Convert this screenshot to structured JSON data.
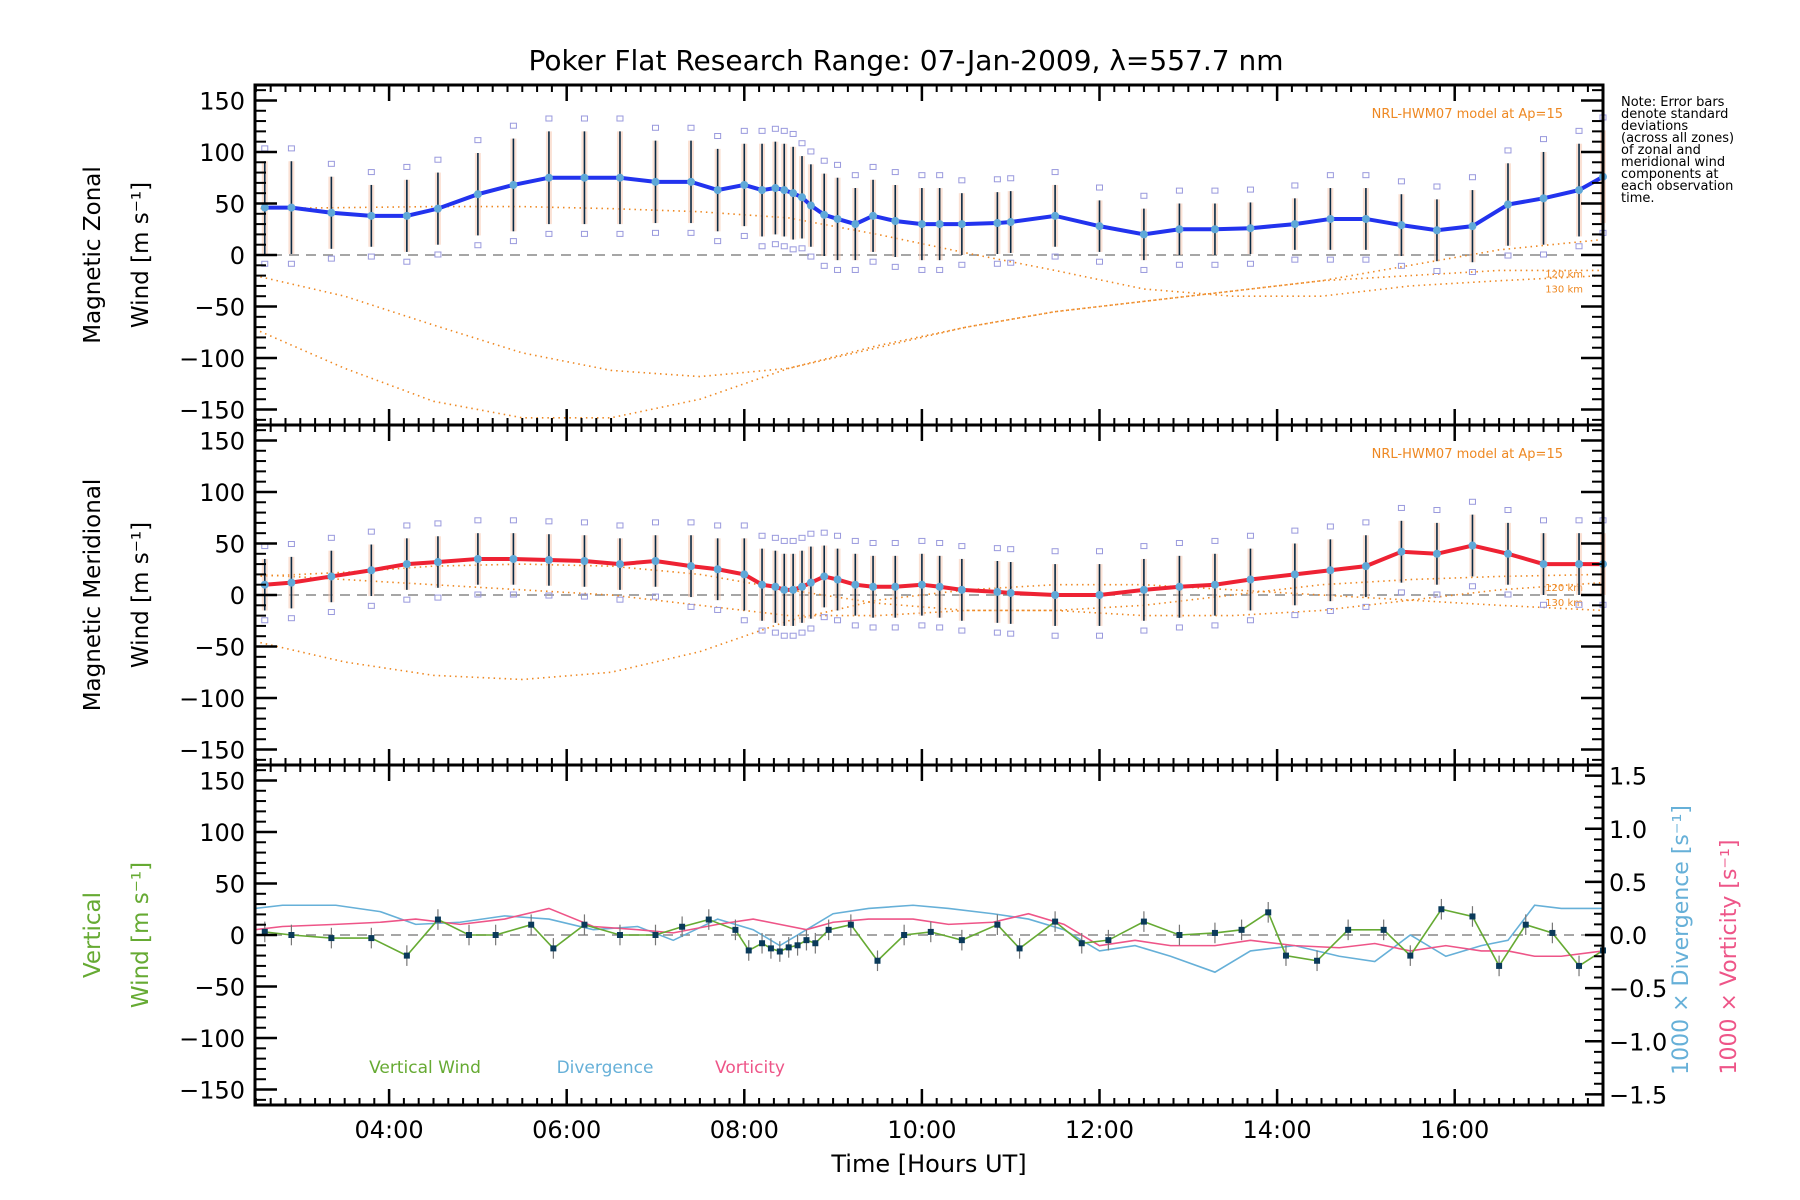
{
  "chart_data": {
    "type": "line",
    "title": "Poker Flat Research Range: 07-Jan-2009, λ=557.7 nm",
    "xlabel": "Time [Hours UT]",
    "xlim": [
      2.49,
      17.67
    ],
    "x_ticks": [
      4,
      6,
      8,
      10,
      12,
      14,
      16
    ],
    "x_tick_labels": [
      "04:00",
      "06:00",
      "08:00",
      "10:00",
      "12:00",
      "14:00",
      "16:00"
    ],
    "note_lines": [
      "Note: Error bars",
      "denote standard",
      "deviations",
      "(across all zones)",
      "of zonal and",
      "meridional wind",
      "components at",
      "each observation",
      "time."
    ],
    "colors": {
      "zonal": "#2233ee",
      "meridional": "#ee2233",
      "marker": "#5fa8d8",
      "model": "#ee8822",
      "errorbar": "#0a2a44",
      "scatter": "#9999dd",
      "vertical": "#66aa33",
      "divergence": "#66b0d8",
      "vorticity": "#ee5588",
      "zero_line": "#888888"
    },
    "panels": [
      {
        "name": "zonal",
        "ylabel_lines": [
          "Magnetic Zonal",
          "Wind [m s⁻¹]"
        ],
        "ylim": [
          -165,
          165
        ],
        "y_ticks": [
          -150,
          -100,
          -50,
          0,
          50,
          100,
          150
        ],
        "model_label": "NRL-HWM07 model at Ap=15",
        "model_alt_labels": [
          "120 km",
          "130 km"
        ],
        "series": {
          "name": "Magnetic Zonal Wind",
          "x": [
            2.6,
            2.9,
            3.35,
            3.8,
            4.2,
            4.55,
            5.0,
            5.4,
            5.8,
            6.2,
            6.6,
            7.0,
            7.4,
            7.7,
            8.0,
            8.2,
            8.35,
            8.45,
            8.55,
            8.65,
            8.75,
            8.9,
            9.05,
            9.25,
            9.45,
            9.7,
            10.0,
            10.2,
            10.45,
            10.85,
            11.0,
            11.5,
            12.0,
            12.5,
            12.9,
            13.3,
            13.7,
            14.2,
            14.6,
            15.0,
            15.4,
            15.8,
            16.2,
            16.6,
            17.0,
            17.4,
            17.67
          ],
          "y": [
            46,
            46,
            41,
            38,
            38,
            45,
            59,
            68,
            75,
            75,
            75,
            71,
            71,
            63,
            68,
            63,
            65,
            63,
            60,
            56,
            48,
            39,
            35,
            30,
            38,
            33,
            30,
            30,
            30,
            31,
            32,
            38,
            28,
            20,
            25,
            25,
            26,
            30,
            35,
            35,
            29,
            24,
            28,
            49,
            55,
            63,
            76
          ],
          "err": [
            45,
            45,
            35,
            30,
            35,
            35,
            40,
            45,
            45,
            45,
            45,
            40,
            40,
            40,
            40,
            45,
            45,
            45,
            45,
            40,
            40,
            40,
            40,
            35,
            35,
            35,
            35,
            35,
            30,
            30,
            30,
            30,
            25,
            25,
            25,
            25,
            25,
            25,
            30,
            30,
            30,
            30,
            35,
            40,
            45,
            45,
            45
          ]
        },
        "model_curves": [
          {
            "label": "model-upper",
            "x": [
              2.49,
              3.5,
              4.5,
              5.5,
              6.5,
              7.5,
              8.5,
              9.5,
              10.5,
              11.5,
              12.5,
              13.5,
              14.5,
              15.5,
              16.5,
              17.67
            ],
            "y": [
              45,
              46,
              47,
              47,
              45,
              42,
              36,
              20,
              2,
              -15,
              -33,
              -40,
              -40,
              -30,
              -25,
              -20
            ]
          },
          {
            "label": "model-120km",
            "x": [
              2.49,
              3.5,
              4.5,
              5.5,
              6.5,
              7.5,
              8.5,
              9.5,
              10.5,
              11.5,
              12.5,
              13.5,
              14.5,
              15.5,
              16.5,
              17.67
            ],
            "y": [
              -20,
              -40,
              -68,
              -95,
              -112,
              -118,
              -110,
              -90,
              -70,
              -55,
              -45,
              -35,
              -25,
              -20,
              -15,
              -15
            ]
          },
          {
            "label": "model-130km",
            "x": [
              2.49,
              3.5,
              4.5,
              5.5,
              6.5,
              7.5,
              8.5,
              9.5,
              10.5,
              11.5,
              12.5,
              13.5,
              14.5,
              15.5,
              16.5,
              17.67
            ],
            "y": [
              -72,
              -110,
              -142,
              -158,
              -158,
              -140,
              -110,
              -88,
              -70,
              -55,
              -45,
              -35,
              -25,
              -10,
              5,
              15
            ]
          }
        ]
      },
      {
        "name": "meridional",
        "ylabel_lines": [
          "Magnetic Meridional",
          "Wind [m s⁻¹]"
        ],
        "ylim": [
          -165,
          165
        ],
        "y_ticks": [
          -150,
          -100,
          -50,
          0,
          50,
          100,
          150
        ],
        "model_label": "NRL-HWM07 model at Ap=15",
        "model_alt_labels": [
          "120 km",
          "130 km"
        ],
        "series": {
          "name": "Magnetic Meridional Wind",
          "x": [
            2.6,
            2.9,
            3.35,
            3.8,
            4.2,
            4.55,
            5.0,
            5.4,
            5.8,
            6.2,
            6.6,
            7.0,
            7.4,
            7.7,
            8.0,
            8.2,
            8.35,
            8.45,
            8.55,
            8.65,
            8.75,
            8.9,
            9.05,
            9.25,
            9.45,
            9.7,
            10.0,
            10.2,
            10.45,
            10.85,
            11.0,
            11.5,
            12.0,
            12.5,
            12.9,
            13.3,
            13.7,
            14.2,
            14.6,
            15.0,
            15.4,
            15.8,
            16.2,
            16.6,
            17.0,
            17.4,
            17.67
          ],
          "y": [
            10,
            12,
            18,
            24,
            30,
            32,
            35,
            35,
            34,
            33,
            30,
            33,
            28,
            25,
            20,
            10,
            8,
            5,
            5,
            8,
            12,
            18,
            15,
            10,
            8,
            8,
            10,
            8,
            5,
            3,
            2,
            0,
            0,
            5,
            8,
            10,
            15,
            20,
            24,
            28,
            42,
            40,
            48,
            40,
            30,
            30,
            30
          ],
          "err": [
            25,
            25,
            25,
            25,
            25,
            25,
            25,
            25,
            25,
            25,
            25,
            25,
            30,
            30,
            35,
            35,
            35,
            35,
            35,
            35,
            35,
            30,
            30,
            30,
            30,
            30,
            30,
            30,
            30,
            30,
            30,
            30,
            30,
            30,
            30,
            30,
            30,
            30,
            30,
            30,
            30,
            30,
            30,
            30,
            30,
            30,
            30
          ]
        },
        "model_curves": [
          {
            "label": "model-upper",
            "x": [
              2.49,
              3.5,
              4.5,
              5.5,
              6.5,
              7.5,
              8.5,
              9.5,
              10.5,
              11.5,
              12.5,
              13.5,
              14.5,
              15.5,
              16.5,
              17.67
            ],
            "y": [
              18,
              22,
              28,
              30,
              28,
              20,
              5,
              -8,
              -15,
              -15,
              -10,
              0,
              10,
              15,
              18,
              20
            ]
          },
          {
            "label": "model-120km",
            "x": [
              2.49,
              3.5,
              4.5,
              5.5,
              6.5,
              7.5,
              8.5,
              9.5,
              10.5,
              11.5,
              12.5,
              13.5,
              14.5,
              15.5,
              16.5,
              17.67
            ],
            "y": [
              -45,
              -65,
              -78,
              -82,
              -75,
              -55,
              -25,
              -5,
              5,
              10,
              10,
              5,
              0,
              -5,
              -10,
              -15
            ]
          },
          {
            "label": "model-130km",
            "x": [
              2.49,
              3.5,
              4.5,
              5.5,
              6.5,
              7.5,
              8.5,
              9.5,
              10.5,
              11.5,
              12.5,
              13.5,
              14.5,
              15.5,
              16.5,
              17.67
            ],
            "y": [
              20,
              15,
              10,
              5,
              0,
              -10,
              -20,
              -20,
              -15,
              -15,
              -20,
              -20,
              -15,
              -5,
              5,
              12
            ]
          }
        ]
      },
      {
        "name": "vertical",
        "ylabel_lines": [
          "Vertical",
          "Wind [m s⁻¹]"
        ],
        "ylim": [
          -165,
          165
        ],
        "y_ticks": [
          -150,
          -100,
          -50,
          0,
          50,
          100,
          150
        ],
        "right_ylim": [
          -1.6,
          1.6
        ],
        "right_y_ticks": [
          -1.5,
          -1.0,
          -0.5,
          0.0,
          0.5,
          1.0,
          1.5
        ],
        "right_y_tick_labels": [
          "−1.5",
          "−1.0",
          "−0.5",
          "0.0",
          "0.5",
          "1.0",
          "1.5"
        ],
        "right_ylabel_divergence": "1000 × Divergence [s⁻¹]",
        "right_ylabel_vorticity": "1000 × Vorticity [s⁻¹]",
        "legend": [
          "Vertical Wind",
          "Divergence",
          "Vorticity"
        ],
        "vertical_wind": {
          "x": [
            2.6,
            2.9,
            3.35,
            3.8,
            4.2,
            4.55,
            4.9,
            5.2,
            5.6,
            5.85,
            6.2,
            6.6,
            7.0,
            7.3,
            7.6,
            7.9,
            8.05,
            8.2,
            8.3,
            8.4,
            8.5,
            8.6,
            8.7,
            8.8,
            8.95,
            9.2,
            9.5,
            9.8,
            10.1,
            10.45,
            10.85,
            11.1,
            11.5,
            11.8,
            12.1,
            12.5,
            12.9,
            13.3,
            13.6,
            13.9,
            14.1,
            14.45,
            14.8,
            15.2,
            15.5,
            15.85,
            16.2,
            16.5,
            16.8,
            17.1,
            17.4,
            17.67
          ],
          "y": [
            3,
            0,
            -3,
            -3,
            -20,
            15,
            0,
            0,
            10,
            -13,
            10,
            0,
            0,
            8,
            15,
            5,
            -15,
            -8,
            -13,
            -16,
            -12,
            -10,
            -5,
            -8,
            5,
            10,
            -25,
            0,
            3,
            -5,
            10,
            -13,
            13,
            -8,
            -5,
            13,
            0,
            2,
            5,
            22,
            -20,
            -25,
            5,
            5,
            -20,
            25,
            18,
            -30,
            10,
            2,
            -30,
            -15
          ],
          "err": [
            10,
            10,
            10,
            10,
            10,
            10,
            10,
            10,
            10,
            10,
            10,
            10,
            10,
            10,
            10,
            10,
            10,
            10,
            10,
            10,
            10,
            10,
            10,
            10,
            10,
            10,
            10,
            10,
            10,
            10,
            10,
            10,
            10,
            10,
            10,
            10,
            10,
            10,
            10,
            10,
            10,
            10,
            10,
            10,
            10,
            10,
            10,
            10,
            10,
            10,
            10,
            10
          ]
        },
        "divergence": {
          "x": [
            2.49,
            2.8,
            3.4,
            3.9,
            4.3,
            4.8,
            5.3,
            5.8,
            6.3,
            6.8,
            7.2,
            7.7,
            8.1,
            8.4,
            8.7,
            9.0,
            9.4,
            9.9,
            10.3,
            10.8,
            11.2,
            11.6,
            12.0,
            12.4,
            12.8,
            13.3,
            13.7,
            14.2,
            14.7,
            15.1,
            15.5,
            15.9,
            16.3,
            16.6,
            16.9,
            17.2,
            17.67
          ],
          "y": [
            0.25,
            0.28,
            0.28,
            0.22,
            0.1,
            0.12,
            0.18,
            0.15,
            0.05,
            0.08,
            -0.05,
            0.15,
            0.05,
            -0.1,
            0.05,
            0.2,
            0.25,
            0.28,
            0.25,
            0.2,
            0.15,
            0.05,
            -0.15,
            -0.1,
            -0.2,
            -0.35,
            -0.15,
            -0.1,
            -0.2,
            -0.25,
            0.0,
            -0.2,
            -0.1,
            -0.05,
            0.28,
            0.25,
            0.25
          ]
        },
        "vorticity": {
          "x": [
            2.49,
            2.8,
            3.4,
            3.9,
            4.3,
            4.8,
            5.3,
            5.8,
            6.3,
            6.8,
            7.2,
            7.7,
            8.1,
            8.4,
            8.7,
            9.0,
            9.4,
            9.9,
            10.3,
            10.8,
            11.2,
            11.6,
            12.0,
            12.4,
            12.8,
            13.3,
            13.7,
            14.2,
            14.7,
            15.1,
            15.5,
            15.9,
            16.3,
            16.6,
            16.9,
            17.2,
            17.67
          ],
          "y": [
            0.05,
            0.08,
            0.1,
            0.12,
            0.15,
            0.1,
            0.15,
            0.25,
            0.08,
            0.05,
            0.02,
            0.1,
            0.15,
            0.1,
            0.05,
            0.12,
            0.15,
            0.15,
            0.1,
            0.12,
            0.2,
            0.1,
            -0.1,
            -0.05,
            -0.1,
            -0.1,
            -0.05,
            -0.1,
            -0.12,
            -0.08,
            -0.15,
            -0.1,
            -0.15,
            -0.15,
            -0.2,
            -0.2,
            -0.15
          ]
        }
      }
    ]
  }
}
